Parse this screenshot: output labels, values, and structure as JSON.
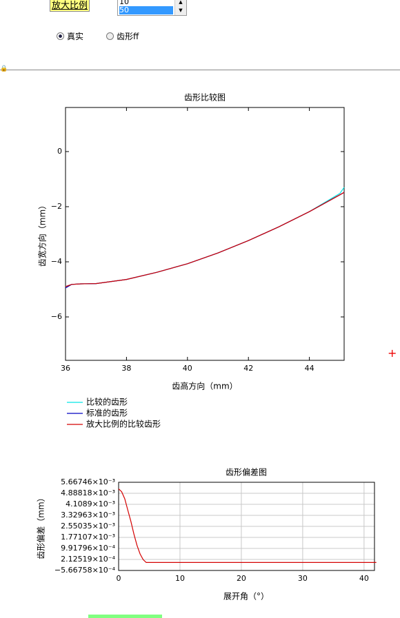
{
  "ui": {
    "zoom_label": "放大比例",
    "list_items": [
      "10",
      "50"
    ],
    "radios": [
      {
        "label": "真实",
        "selected": true
      },
      {
        "label": "齿形ff",
        "selected": false
      }
    ]
  },
  "chart_data": [
    {
      "type": "line",
      "title": "齿形比较图",
      "x_label": "齿高方向（mm）",
      "y_label": "齿宽方向（mm）",
      "x": [
        36,
        36.2,
        36.5,
        37,
        38,
        39,
        40,
        41,
        42,
        43,
        44,
        45,
        45.14
      ],
      "series": [
        {
          "name": "比较的齿形",
          "color": "#00e5e5",
          "values": [
            -4.9,
            -4.82,
            -4.8,
            -4.79,
            -4.64,
            -4.38,
            -4.07,
            -3.68,
            -3.23,
            -2.73,
            -2.18,
            -1.52,
            -1.3
          ]
        },
        {
          "name": "标准的齿形",
          "color": "#0000c0",
          "values": [
            -4.95,
            -4.82,
            -4.8,
            -4.79,
            -4.64,
            -4.38,
            -4.07,
            -3.68,
            -3.23,
            -2.73,
            -2.18,
            -1.57,
            -1.48
          ]
        },
        {
          "name": "放大比例的比较齿形",
          "color": "#d40000",
          "values": [
            -4.9,
            -4.82,
            -4.8,
            -4.79,
            -4.64,
            -4.38,
            -4.07,
            -3.68,
            -3.23,
            -2.73,
            -2.18,
            -1.57,
            -1.48
          ]
        }
      ],
      "xlim": [
        36,
        45.14
      ],
      "xticks": [
        36,
        38,
        40,
        42,
        44
      ],
      "ylim": [
        -7.575,
        1.6
      ],
      "yticks": [
        0,
        {
          "value": -2,
          "label": "−2"
        },
        {
          "value": -4,
          "label": "−4"
        },
        {
          "value": -6,
          "label": "−6"
        }
      ],
      "grid": false,
      "legend": "bottom"
    },
    {
      "type": "line",
      "title": "齿形偏差图",
      "x_label": "展开角（°）",
      "y_label": "齿形偏差（mm）",
      "x": [
        0,
        0.5,
        1,
        1.5,
        2,
        2.5,
        3,
        3.5,
        4,
        4.5,
        42
      ],
      "series": [
        {
          "color": "#d40000",
          "values": [
            0.0052,
            0.005,
            0.0045,
            0.0037,
            0.0029,
            0.002,
            0.0012,
            0.0006,
            0.0002,
            0,
            0
          ]
        }
      ],
      "xlim": [
        0,
        41.7
      ],
      "xticks": [
        0,
        10,
        20,
        30,
        40
      ],
      "ylim": [
        -0.000566758,
        0.00566746
      ],
      "yticks": [
        {
          "value": 0.00566746,
          "label": "5.66746×10⁻³"
        },
        {
          "value": 0.00488818,
          "label": "4.88818×10⁻³"
        },
        {
          "value": 0.0041089,
          "label": "4.1089×10⁻³"
        },
        {
          "value": 0.00332963,
          "label": "3.32963×10⁻³"
        },
        {
          "value": 0.00255035,
          "label": "2.55035×10⁻³"
        },
        {
          "value": 0.00177107,
          "label": "1.77107×10⁻³"
        },
        {
          "value": 0.000991796,
          "label": "9.91796×10⁻⁴"
        },
        {
          "value": 0.000212519,
          "label": "2.12519×10⁻⁴"
        },
        {
          "value": -0.000566758,
          "label": "−5.66758×10⁻⁴"
        }
      ],
      "grid": true
    }
  ]
}
